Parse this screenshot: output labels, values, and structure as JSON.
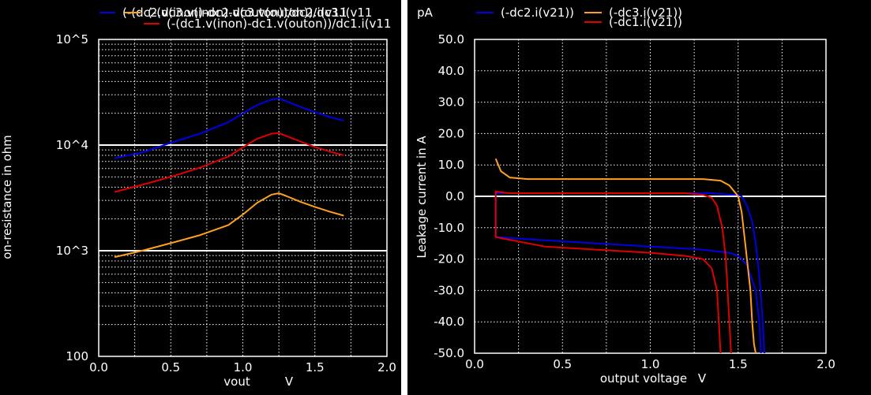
{
  "chart_data": [
    {
      "type": "line",
      "title": "",
      "xlabel": "vout",
      "xunit": "V",
      "ylabel": "on-resistance in ohm",
      "yscale": "log",
      "xlim": [
        0,
        2
      ],
      "ylim": [
        100,
        100000
      ],
      "grid": true,
      "x_ticks": [
        "0.0",
        "0.5",
        "1.0",
        "1.5",
        "2.0"
      ],
      "y_ticks": [
        "100",
        "10^3",
        "10^4",
        "10^5"
      ],
      "legend": [
        "(-(dc2.v(inon)-dc2.v(outon))/dc2.i(v11",
        "(-(dc3.v(inon)-dc3.v(outon))/dc3.i(v11",
        "(-(dc1.v(inon)-dc1.v(outon))/dc1.i(v11"
      ],
      "legend_position": "top",
      "x": [
        0.11,
        0.3,
        0.5,
        0.7,
        0.9,
        1.0,
        1.1,
        1.2,
        1.25,
        1.3,
        1.4,
        1.5,
        1.6,
        1.7
      ],
      "series": [
        {
          "name": "(-(dc2.v(inon)-dc2.v(outon))/dc2.i(v11",
          "color": "#0000e6",
          "values": [
            7500,
            8500,
            10500,
            12800,
            16500,
            20000,
            24000,
            27000,
            27500,
            26000,
            23000,
            20500,
            18500,
            17000
          ]
        },
        {
          "name": "(-(dc3.v(inon)-dc3.v(outon))/dc3.i(v11",
          "color": "#ffa020",
          "values": [
            870,
            1000,
            1180,
            1400,
            1750,
            2200,
            2850,
            3400,
            3500,
            3300,
            2900,
            2600,
            2350,
            2150
          ]
        },
        {
          "name": "(-(dc1.v(inon)-dc1.v(outon))/dc1.i(v11",
          "color": "#e00000",
          "values": [
            3600,
            4200,
            5000,
            6100,
            7800,
            9500,
            11500,
            12800,
            13000,
            12200,
            10800,
            9600,
            8700,
            8000
          ]
        }
      ]
    },
    {
      "type": "line",
      "title": "",
      "xlabel": "output voltage",
      "xunit": "V",
      "ylabel": "Leakage current in A",
      "yunit": "pA",
      "xlim": [
        0,
        2
      ],
      "ylim": [
        -50,
        50
      ],
      "grid": true,
      "x_ticks": [
        "0.0",
        "0.5",
        "1.0",
        "1.5",
        "2.0"
      ],
      "y_ticks": [
        "-50.0",
        "-40.0",
        "-30.0",
        "-20.0",
        "-10.0",
        "0.0",
        "10.0",
        "20.0",
        "30.0",
        "40.0",
        "50.0"
      ],
      "legend": [
        "(-dc2.i(v21))",
        "(-dc3.i(v21))",
        "(-dc1.i(v21))"
      ],
      "legend_position": "top",
      "series": [
        {
          "name": "(-dc2.i(v21))",
          "color": "#0000e6",
          "x": [
            1.63,
            1.62,
            1.6,
            1.57,
            1.55,
            1.52,
            1.5,
            1.45,
            1.3,
            1.0,
            0.7,
            0.4,
            0.12,
            0.12,
            0.5,
            0.8,
            1.0,
            1.2,
            1.35,
            1.45,
            1.5,
            1.52,
            1.55,
            1.58,
            1.6,
            1.62,
            1.64,
            1.65
          ],
          "y": [
            -50,
            -40,
            -30,
            -25,
            -22,
            -20,
            -19,
            -18,
            -17,
            -16,
            -15,
            -14,
            -13,
            1,
            1,
            1,
            1,
            1,
            1,
            0.5,
            0.5,
            0,
            -3,
            -8,
            -15,
            -25,
            -40,
            -50
          ]
        },
        {
          "name": "(-dc3.i(v21))",
          "color": "#ffa020",
          "x": [
            0.12,
            0.15,
            0.2,
            0.3,
            0.5,
            0.8,
            1.0,
            1.2,
            1.3,
            1.4,
            1.45,
            1.5,
            1.52,
            1.54,
            1.55,
            1.57,
            1.58,
            1.59,
            1.6
          ],
          "y": [
            12,
            8,
            6,
            5.5,
            5.5,
            5.5,
            5.5,
            5.5,
            5.5,
            5,
            3.5,
            0,
            -5,
            -15,
            -20,
            -30,
            -40,
            -47,
            -50
          ]
        },
        {
          "name": "(-dc1.i(v21))",
          "color": "#e00000",
          "x": [
            1.4,
            1.39,
            1.38,
            1.35,
            1.3,
            1.2,
            1.0,
            0.7,
            0.4,
            0.12,
            0.12,
            0.2,
            0.5,
            0.8,
            1.0,
            1.2,
            1.3,
            1.35,
            1.38,
            1.41,
            1.43,
            1.44,
            1.45,
            1.46
          ],
          "y": [
            -50,
            -40,
            -30,
            -23,
            -20,
            -19,
            -18,
            -17,
            -16,
            -13,
            1.5,
            1,
            1,
            1,
            1,
            1,
            0.5,
            -0.5,
            -3,
            -10,
            -20,
            -30,
            -40,
            -50
          ]
        }
      ]
    }
  ]
}
